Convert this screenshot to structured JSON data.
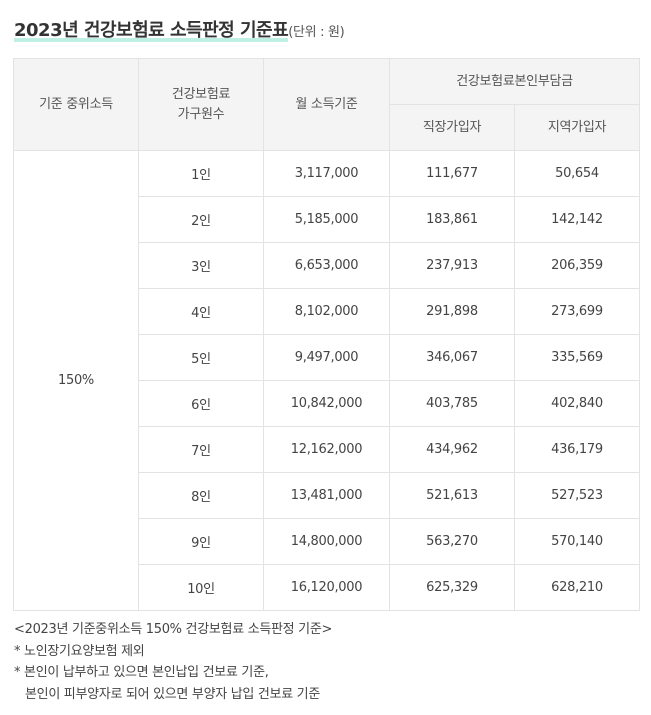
{
  "title": {
    "main": "2023년 건강보험료 소득판정 기준표",
    "unit": "(단위 : 원)"
  },
  "table": {
    "headers": {
      "median_income": "기준 중위소득",
      "household_line1": "건강보험료",
      "household_line2": "가구원수",
      "monthly_income": "월 소득기준",
      "premium_group": "건강보험료본인부담금",
      "employee": "직장가입자",
      "regional": "지역가입자"
    },
    "median_value": "150%",
    "rows": [
      {
        "members": "1인",
        "income": "3,117,000",
        "employee": "111,677",
        "regional": "50,654"
      },
      {
        "members": "2인",
        "income": "5,185,000",
        "employee": "183,861",
        "regional": "142,142"
      },
      {
        "members": "3인",
        "income": "6,653,000",
        "employee": "237,913",
        "regional": "206,359"
      },
      {
        "members": "4인",
        "income": "8,102,000",
        "employee": "291,898",
        "regional": "273,699"
      },
      {
        "members": "5인",
        "income": "9,497,000",
        "employee": "346,067",
        "regional": "335,569"
      },
      {
        "members": "6인",
        "income": "10,842,000",
        "employee": "403,785",
        "regional": "402,840"
      },
      {
        "members": "7인",
        "income": "12,162,000",
        "employee": "434,962",
        "regional": "436,179"
      },
      {
        "members": "8인",
        "income": "13,481,000",
        "employee": "521,613",
        "regional": "527,523"
      },
      {
        "members": "9인",
        "income": "14,800,000",
        "employee": "563,270",
        "regional": "570,140"
      },
      {
        "members": "10인",
        "income": "16,120,000",
        "employee": "625,329",
        "regional": "628,210"
      }
    ]
  },
  "notes": {
    "caption": "<2023년 기준중위소득 150% 건강보험료 소득판정 기준>",
    "note1": "* 노인장기요양보험 제외",
    "note2_line1": "* 본인이 납부하고 있으면 본인납입 건보료 기준,",
    "note2_line2": "본인이 피부양자로 되어 있으면 부양자 납입 건보료 기준"
  }
}
